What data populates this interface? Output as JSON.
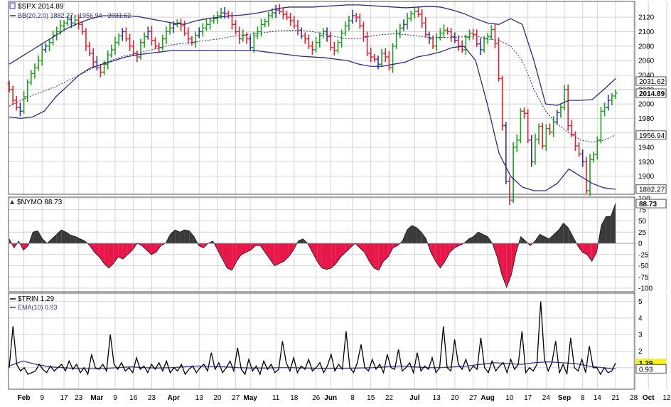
{
  "chart_data": [
    {
      "type": "bar",
      "subtype": "ohlc-bars-with-bollinger-bands",
      "title": "$SPX 2014.89",
      "legend": [
        "BB(20,2.0) 1882.27 - 1956.94 - 2031.62"
      ],
      "grid": true,
      "ylim": [
        1880,
        2130
      ],
      "y_ticks": [
        1900,
        1920,
        1940,
        1960,
        1980,
        2000,
        2020,
        2040,
        2060,
        2080,
        2100,
        2120
      ],
      "y_tick_labels": [
        "1900",
        "1920",
        "1940",
        "1960",
        "1980",
        "2000",
        "2020",
        "2040",
        "2060",
        "2080",
        "2100",
        "2120"
      ],
      "value_tags": [
        {
          "label": "2031.62",
          "value": 2031.62
        },
        {
          "label": "2014.89",
          "value": 2014.89,
          "bold": true
        },
        {
          "label": "1956.94",
          "value": 1956.94
        },
        {
          "label": "1882.27",
          "value": 1882.27
        }
      ],
      "series": [
        {
          "name": "$SPX",
          "close": [
            2020,
            2005,
            1995,
            1990,
            2010,
            2030,
            2042,
            2050,
            2060,
            2075,
            2080,
            2085,
            2095,
            2100,
            2108,
            2112,
            2117,
            2112,
            2116,
            2110,
            2100,
            2080,
            2070,
            2058,
            2050,
            2044,
            2055,
            2068,
            2075,
            2085,
            2094,
            2100,
            2090,
            2080,
            2070,
            2065,
            2085,
            2093,
            2100,
            2088,
            2080,
            2078,
            2090,
            2100,
            2105,
            2110,
            2112,
            2108,
            2098,
            2090,
            2085,
            2095,
            2100,
            2105,
            2110,
            2115,
            2118,
            2122,
            2126,
            2125,
            2122,
            2110,
            2100,
            2090,
            2095,
            2090,
            2078,
            2094,
            2100,
            2110,
            2114,
            2122,
            2126,
            2130,
            2128,
            2124,
            2120,
            2115,
            2108,
            2102,
            2094,
            2090,
            2080,
            2075,
            2085,
            2095,
            2100,
            2093,
            2078,
            2074,
            2085,
            2098,
            2108,
            2115,
            2122,
            2120,
            2108,
            2093,
            2070,
            2065,
            2062,
            2055,
            2070,
            2065,
            2050,
            2080,
            2098,
            2105,
            2110,
            2118,
            2125,
            2128,
            2124,
            2112,
            2096,
            2090,
            2080,
            2092,
            2098,
            2102,
            2100,
            2093,
            2088,
            2080,
            2075,
            2092,
            2098,
            2096,
            2083,
            2075,
            2090,
            2093,
            2103,
            2084,
            2035,
            1970,
            1893,
            1867,
            1940,
            1950,
            1990,
            1987,
            1950,
            1920,
            1951,
            1969,
            1942,
            1966,
            1961,
            1975,
            1988,
            1995,
            2020,
            1970,
            1958,
            1942,
            1931,
            1920,
            1880,
            1923,
            1930,
            1950,
            1990,
            1995,
            2005,
            2011,
            2015
          ]
        },
        {
          "name": "BB upper",
          "values": [
            2055,
            2065,
            2075,
            2085,
            2095,
            2105,
            2112,
            2118,
            2122,
            2122,
            2122,
            2121,
            2118,
            2115,
            2112,
            2110,
            2115,
            2118,
            2120,
            2122,
            2123,
            2125,
            2128,
            2132,
            2134,
            2134,
            2134,
            2135,
            2136,
            2137,
            2137,
            2136,
            2135,
            2134,
            2133,
            2134,
            2135,
            2134,
            2130,
            2125,
            2118,
            2112,
            2110,
            2118,
            2110,
            2060,
            2000,
            1998,
            2005,
            2005,
            2006,
            2020,
            2035
          ]
        },
        {
          "name": "BB middle",
          "values": [
            1997,
            2005,
            2012,
            2018,
            2024,
            2032,
            2040,
            2048,
            2056,
            2062,
            2067,
            2070,
            2074,
            2078,
            2082,
            2084,
            2086,
            2088,
            2090,
            2093,
            2095,
            2097,
            2099,
            2101,
            2102,
            2102,
            2100,
            2097,
            2093,
            2090,
            2090,
            2094,
            2096,
            2097,
            2096,
            2094,
            2092,
            2092,
            2092,
            2093,
            2094,
            2090,
            2088,
            2080,
            2060,
            2020,
            1990,
            1972,
            1960,
            1950,
            1947,
            1950,
            1957
          ]
        },
        {
          "name": "BB lower",
          "values": [
            1982,
            1980,
            1982,
            1990,
            2010,
            2025,
            2040,
            2050,
            2055,
            2060,
            2065,
            2068,
            2070,
            2072,
            2074,
            2074,
            2074,
            2074,
            2074,
            2074,
            2074,
            2074,
            2072,
            2070,
            2068,
            2066,
            2065,
            2064,
            2062,
            2060,
            2055,
            2052,
            2052,
            2055,
            2058,
            2065,
            2068,
            2072,
            2078,
            2080,
            2060,
            2000,
            1932,
            1900,
            1885,
            1880,
            1880,
            1890,
            1910,
            1900,
            1890,
            1884,
            1882
          ]
        }
      ]
    },
    {
      "type": "area",
      "title": "$NYMO 88.73",
      "grid": true,
      "ylim": [
        -100,
        100
      ],
      "y_ticks": [
        -100,
        -75,
        -50,
        -25,
        0,
        25,
        50,
        75,
        100
      ],
      "y_tick_labels": [
        "-100",
        "-75",
        "-50",
        "-25",
        "0",
        "25",
        "50",
        "75",
        "100"
      ],
      "value_tags": [
        {
          "label": "88.73",
          "value": 88.73,
          "bold": true
        }
      ],
      "series": [
        {
          "name": "$NYMO",
          "values": [
            10,
            -10,
            5,
            -15,
            -5,
            25,
            28,
            10,
            0,
            10,
            20,
            30,
            25,
            18,
            15,
            10,
            5,
            -5,
            -20,
            -30,
            -45,
            -55,
            -45,
            -30,
            -35,
            -25,
            -15,
            0,
            -5,
            -15,
            -25,
            -20,
            -5,
            0,
            20,
            30,
            25,
            30,
            28,
            15,
            -5,
            -10,
            0,
            5,
            -15,
            -35,
            -55,
            -60,
            -40,
            -25,
            -20,
            -15,
            -5,
            -5,
            -20,
            -35,
            -50,
            -45,
            -40,
            -30,
            -15,
            5,
            10,
            0,
            -20,
            -40,
            -55,
            -58,
            -55,
            -45,
            -30,
            -20,
            -10,
            0,
            -10,
            -20,
            -40,
            -55,
            -60,
            -40,
            -30,
            -10,
            -5,
            5,
            30,
            40,
            35,
            25,
            10,
            -20,
            -40,
            -55,
            -40,
            -20,
            -10,
            -5,
            0,
            10,
            15,
            25,
            20,
            15,
            0,
            -30,
            -70,
            -98,
            -70,
            -20,
            15,
            5,
            -5,
            5,
            20,
            15,
            10,
            20,
            30,
            45,
            35,
            15,
            -5,
            -20,
            -25,
            -40,
            -20,
            40,
            60,
            60,
            89
          ]
        }
      ]
    },
    {
      "type": "line",
      "title": "$TRIN 1.29",
      "legend": [
        "$TRIN 1.29",
        "EMA(10) 0.93"
      ],
      "grid": true,
      "ylim": [
        0,
        5.5
      ],
      "y_ticks": [
        1,
        2,
        3,
        4,
        5
      ],
      "y_tick_labels": [
        "1",
        "2",
        "3",
        "4",
        "5"
      ],
      "value_tags": [
        {
          "label": "1.29",
          "value": 1.29,
          "bold": true,
          "highlight": "#f7f21a"
        },
        {
          "label": "0.93",
          "value": 0.93
        }
      ],
      "series": [
        {
          "name": "$TRIN",
          "values": [
            1.0,
            3.5,
            1.2,
            0.8,
            1.0,
            0.6,
            0.7,
            0.8,
            1.2,
            0.9,
            0.7,
            1.1,
            0.8,
            1.0,
            1.2,
            0.8,
            1.4,
            0.9,
            1.2,
            0.7,
            1.0,
            0.6,
            1.8,
            1.0,
            0.9,
            1.2,
            0.8,
            3.0,
            1.2,
            0.9,
            1.3,
            0.8,
            1.0,
            0.7,
            1.6,
            0.9,
            1.1,
            0.7,
            1.2,
            0.9,
            1.3,
            0.8,
            1.4,
            0.7,
            1.0,
            0.8,
            1.2,
            0.6,
            0.9,
            1.1,
            0.7,
            1.0,
            1.2,
            0.8,
            1.9,
            0.9,
            1.3,
            0.7,
            1.0,
            1.4,
            0.8,
            2.2,
            0.9,
            0.6,
            1.5,
            0.8,
            1.1,
            0.6,
            1.4,
            0.9,
            1.2,
            0.7,
            0.9,
            2.6,
            1.3,
            0.8,
            1.6,
            0.7,
            1.1,
            0.9,
            1.5,
            0.8,
            1.0,
            1.3,
            0.7,
            1.1,
            1.8,
            0.8,
            1.2,
            0.9,
            3.2,
            1.0,
            0.7,
            1.3,
            2.4,
            1.0,
            0.8,
            1.5,
            0.9,
            1.2,
            0.7,
            1.8,
            1.0,
            0.9,
            2.1,
            0.8,
            1.0,
            1.3,
            0.7,
            1.9,
            0.8,
            1.1,
            0.9,
            1.6,
            0.7,
            1.0,
            3.5,
            1.0,
            0.8,
            2.7,
            1.2,
            0.9,
            1.5,
            0.8,
            1.1,
            0.9,
            2.8,
            1.0,
            0.7,
            1.4,
            0.8,
            1.1,
            1.3,
            0.7,
            1.5,
            0.9,
            1.2,
            3.2,
            0.7,
            1.0,
            0.8,
            1.2,
            5.0,
            1.5,
            0.8,
            1.3,
            2.6,
            0.7,
            1.2,
            0.6,
            2.8,
            1.0,
            0.8,
            1.5,
            0.7,
            2.3,
            1.0,
            1.0,
            0.6,
            1.0,
            0.7,
            0.8,
            1.29
          ]
        },
        {
          "name": "EMA(10)",
          "values": [
            1.1,
            1.4,
            1.2,
            1.05,
            1.0,
            0.95,
            0.93,
            0.95,
            1.0,
            1.05,
            1.0,
            0.98,
            1.0,
            1.05,
            1.1,
            1.08,
            1.05,
            1.0,
            0.98,
            0.98,
            1.0,
            1.0,
            0.98,
            0.96,
            0.95,
            0.96,
            0.98,
            1.0,
            1.05,
            1.1,
            1.05,
            1.0,
            1.0,
            1.05,
            1.1,
            1.2,
            1.3,
            1.25,
            1.2,
            1.3,
            1.35,
            1.3,
            1.25,
            1.1,
            1.0,
            0.93
          ]
        }
      ]
    }
  ],
  "x_axis": {
    "ticks": [
      {
        "label": "Feb",
        "i": 4
      },
      {
        "label": "9",
        "i": 9
      },
      {
        "label": "17",
        "i": 15
      },
      {
        "label": "23",
        "i": 19
      },
      {
        "label": "Mar",
        "i": 24
      },
      {
        "label": "9",
        "i": 29
      },
      {
        "label": "16",
        "i": 34
      },
      {
        "label": "23",
        "i": 39
      },
      {
        "label": "Apr",
        "i": 45
      },
      {
        "label": "13",
        "i": 52
      },
      {
        "label": "20",
        "i": 57
      },
      {
        "label": "27",
        "i": 62
      },
      {
        "label": "May",
        "i": 66
      },
      {
        "label": "11",
        "i": 73
      },
      {
        "label": "18",
        "i": 78
      },
      {
        "label": "26",
        "i": 84
      },
      {
        "label": "Jun",
        "i": 88
      },
      {
        "label": "8",
        "i": 94
      },
      {
        "label": "15",
        "i": 99
      },
      {
        "label": "22",
        "i": 104
      },
      {
        "label": "Jul",
        "i": 111
      },
      {
        "label": "13",
        "i": 117
      },
      {
        "label": "20",
        "i": 122
      },
      {
        "label": "27",
        "i": 127
      },
      {
        "label": "Aug",
        "i": 131
      },
      {
        "label": "10",
        "i": 137
      },
      {
        "label": "17",
        "i": 142
      },
      {
        "label": "24",
        "i": 147
      },
      {
        "label": "Sep",
        "i": 152
      },
      {
        "label": "8",
        "i": 157
      },
      {
        "label": "14",
        "i": 161
      },
      {
        "label": "21",
        "i": 166
      },
      {
        "label": "28",
        "i": 171
      },
      {
        "label": "Oct",
        "i": 175
      },
      {
        "label": "12",
        "i": 180
      }
    ]
  },
  "colors": {
    "up_bar": "#1aa31a",
    "down_bar": "#e0212f",
    "neutral_bar": "#2f2fc0",
    "band": "#2c2c80",
    "positive_area": "#3a3a3a",
    "negative_area": "#e8174a",
    "trin_line": "#000000",
    "ema_line": "#3a3a90",
    "grid": "#d4d4d4"
  }
}
